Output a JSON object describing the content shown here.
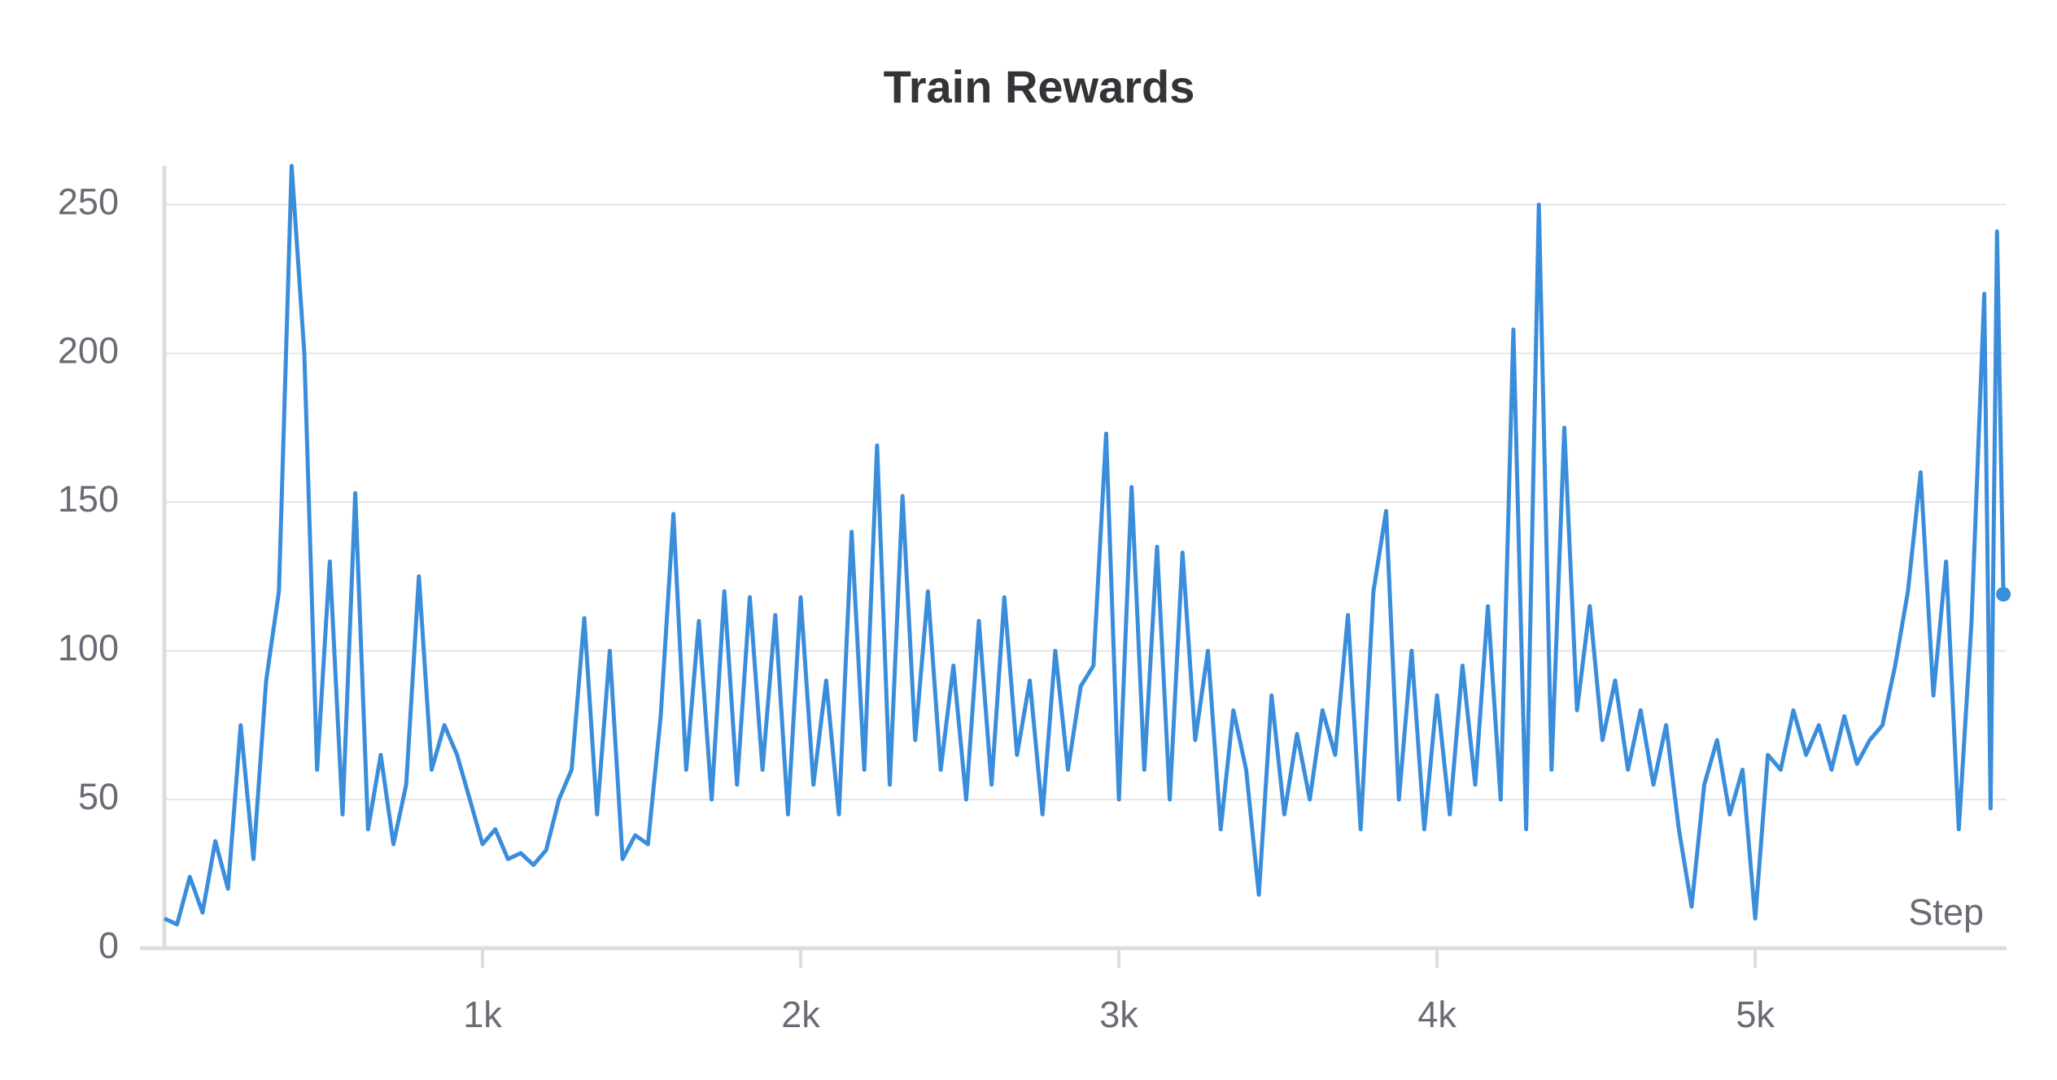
{
  "chart_data": {
    "type": "line",
    "title": "Train Rewards",
    "x_label": "Step",
    "x": [
      0,
      40,
      80,
      120,
      160,
      200,
      240,
      280,
      320,
      360,
      400,
      440,
      480,
      520,
      560,
      600,
      640,
      680,
      720,
      760,
      800,
      840,
      880,
      920,
      960,
      1000,
      1040,
      1080,
      1120,
      1160,
      1200,
      1240,
      1280,
      1320,
      1360,
      1400,
      1440,
      1480,
      1520,
      1560,
      1600,
      1640,
      1680,
      1720,
      1760,
      1800,
      1840,
      1880,
      1920,
      1960,
      2000,
      2040,
      2080,
      2120,
      2160,
      2200,
      2240,
      2280,
      2320,
      2360,
      2400,
      2440,
      2480,
      2520,
      2560,
      2600,
      2640,
      2680,
      2720,
      2760,
      2800,
      2840,
      2880,
      2920,
      2960,
      3000,
      3040,
      3080,
      3120,
      3160,
      3200,
      3240,
      3280,
      3320,
      3360,
      3400,
      3440,
      3480,
      3520,
      3560,
      3600,
      3640,
      3680,
      3720,
      3760,
      3800,
      3840,
      3880,
      3920,
      3960,
      4000,
      4040,
      4080,
      4120,
      4160,
      4200,
      4240,
      4280,
      4320,
      4360,
      4400,
      4440,
      4480,
      4520,
      4560,
      4600,
      4640,
      4680,
      4720,
      4760,
      4800,
      4840,
      4880,
      4920,
      4960,
      5000,
      5040,
      5080,
      5120,
      5160,
      5200,
      5240,
      5280,
      5320,
      5360,
      5400,
      5440,
      5480,
      5520,
      5560,
      5600,
      5640,
      5680,
      5720,
      5740,
      5760,
      5780
    ],
    "series": [
      {
        "name": "Train Rewards",
        "color": "#3a8ddb",
        "values": [
          10,
          8,
          24,
          12,
          36,
          20,
          75,
          30,
          90,
          120,
          263,
          200,
          60,
          130,
          45,
          153,
          40,
          65,
          35,
          55,
          125,
          60,
          75,
          65,
          50,
          35,
          40,
          30,
          32,
          28,
          33,
          50,
          60,
          111,
          45,
          100,
          30,
          38,
          35,
          78,
          146,
          60,
          110,
          50,
          120,
          55,
          118,
          60,
          112,
          45,
          118,
          55,
          90,
          45,
          140,
          60,
          169,
          55,
          152,
          70,
          120,
          60,
          95,
          50,
          110,
          55,
          118,
          65,
          90,
          45,
          100,
          60,
          88,
          95,
          173,
          50,
          155,
          60,
          135,
          50,
          133,
          70,
          100,
          40,
          80,
          60,
          18,
          85,
          45,
          72,
          50,
          80,
          65,
          112,
          40,
          120,
          147,
          50,
          100,
          40,
          85,
          45,
          95,
          55,
          115,
          50,
          208,
          40,
          250,
          60,
          175,
          80,
          115,
          70,
          90,
          60,
          80,
          55,
          75,
          40,
          14,
          55,
          70,
          45,
          60,
          10,
          65,
          60,
          80,
          65,
          75,
          60,
          78,
          62,
          70,
          75,
          95,
          120,
          160,
          85,
          130,
          40,
          110,
          220,
          47,
          241,
          119
        ]
      }
    ],
    "xlim": [
      0,
      5790
    ],
    "ylim": [
      0,
      263
    ],
    "xticks": [
      {
        "value": 1000,
        "label": "1k"
      },
      {
        "value": 2000,
        "label": "2k"
      },
      {
        "value": 3000,
        "label": "3k"
      },
      {
        "value": 4000,
        "label": "4k"
      },
      {
        "value": 5000,
        "label": "5k"
      }
    ],
    "yticks": [
      0,
      50,
      100,
      150,
      200,
      250
    ],
    "grid": true
  }
}
